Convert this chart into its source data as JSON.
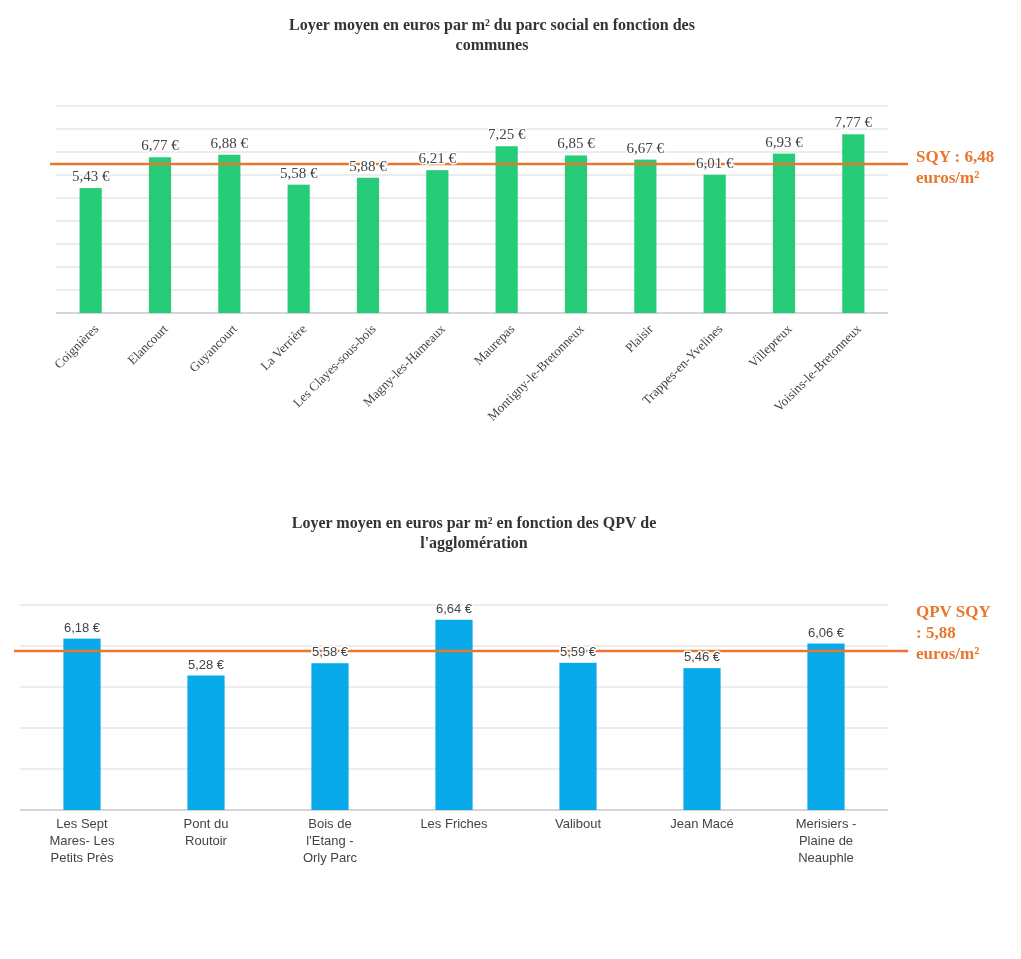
{
  "chart_data": [
    {
      "type": "bar",
      "title": "Loyer moyen en euros par m² du parc social en fonction des communes",
      "categories": [
        "Coignières",
        "Elancourt",
        "Guyancourt",
        "La Verrière",
        "Les Clayes-sous-bois",
        "Magny-les-Hameaux",
        "Maurepas",
        "Montigny-le-Bretonneux",
        "Plaisir",
        "Trappes-en-Yvelines",
        "Villepreux",
        "Voisins-le-Bretonneux"
      ],
      "values": [
        5.43,
        6.77,
        6.88,
        5.58,
        5.88,
        6.21,
        7.25,
        6.85,
        6.67,
        6.01,
        6.93,
        7.77
      ],
      "value_labels": [
        "5,43 €",
        "6,77 €",
        "6,88 €",
        "5,58 €",
        "5,88 €",
        "6,21 €",
        "7,25 €",
        "6,85 €",
        "6,67 €",
        "6,01 €",
        "6,93 €",
        "7,77 €"
      ],
      "color": "#27cc78",
      "ylim": [
        0,
        9
      ],
      "yticks": [
        {
          "value": 0,
          "label": null
        },
        {
          "value": 1,
          "label": null
        },
        {
          "value": 2,
          "label": null
        },
        {
          "value": 3,
          "label": null
        },
        {
          "value": 4,
          "label": null
        },
        {
          "value": 5,
          "label": null
        },
        {
          "value": 6,
          "label": null
        },
        {
          "value": 7,
          "label": null
        },
        {
          "value": 8,
          "label": null
        },
        {
          "value": 9,
          "label": null
        }
      ],
      "grid": "y",
      "tick_labels": "x",
      "ref_lines": [
        {
          "axis": "y",
          "value": 6.48,
          "label": "SQY : 6,48 euros/m²",
          "color": "#e8772e"
        }
      ]
    },
    {
      "type": "bar",
      "title": "Loyer moyen en euros par m² en fonction des QPV de l'agglomération",
      "categories": [
        "Les Sept Mares- Les Petits Près",
        "Pont du Routoir",
        "Bois de l'Etang - Orly Parc",
        "Les Friches",
        "Valibout",
        "Jean Macé",
        "Merisiers - Plaine de Neauphle"
      ],
      "values": [
        6.18,
        5.28,
        5.58,
        6.64,
        5.59,
        5.46,
        6.06
      ],
      "value_labels": [
        "6,18 €",
        "5,28 €",
        "5,58 €",
        "6,64 €",
        "5,59 €",
        "5,46 €",
        "6,06 €"
      ],
      "color": "#07a9e8",
      "ylim": [
        2,
        7
      ],
      "yticks": [
        {
          "value": 2,
          "label": null
        },
        {
          "value": 3,
          "label": null
        },
        {
          "value": 4,
          "label": null
        },
        {
          "value": 5,
          "label": null
        },
        {
          "value": 6,
          "label": null
        },
        {
          "value": 7,
          "label": null
        }
      ],
      "grid": "y",
      "tick_labels": "x",
      "ref_lines": [
        {
          "axis": "y",
          "value": 5.88,
          "label": "QPV SQY : 5,88 euros/m²",
          "color": "#e8772e"
        }
      ]
    }
  ]
}
